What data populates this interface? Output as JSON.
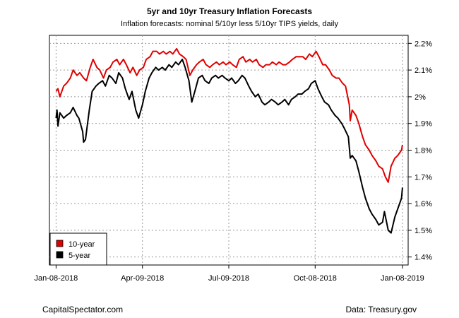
{
  "chart_data": {
    "type": "line",
    "title": "5yr and 10yr Treasury Inflation Forecasts",
    "subtitle": "Inflation forecasts: nominal 5/10yr less 5/10yr TIPS yields, daily",
    "xlabel": "",
    "ylabel": "",
    "ylim": [
      1.37,
      2.23
    ],
    "xlim": [
      "2018-01-01",
      "2019-01-14"
    ],
    "x_ticks": [
      "2018-01-08",
      "2018-04-09",
      "2018-07-09",
      "2018-10-08",
      "2019-01-08"
    ],
    "x_tick_labels": [
      "Jan-08-2018",
      "Apr-09-2018",
      "Jul-09-2018",
      "Oct-08-2018",
      "Jan-08-2019"
    ],
    "y_ticks": [
      1.4,
      1.5,
      1.6,
      1.7,
      1.8,
      1.9,
      2.0,
      2.1,
      2.2
    ],
    "y_tick_labels": [
      "1.4%",
      "1.5%",
      "1.6%",
      "1.7%",
      "1.8%",
      "1.9%",
      "2%",
      "2.1%",
      "2.2%"
    ],
    "grid": true,
    "legend_position": "bottom-left",
    "series": [
      {
        "name": "10-year",
        "color": "#e00000",
        "points": [
          [
            "2018-01-08",
            2.02
          ],
          [
            "2018-01-10",
            2.03
          ],
          [
            "2018-01-12",
            2.0
          ],
          [
            "2018-01-16",
            2.04
          ],
          [
            "2018-01-19",
            2.05
          ],
          [
            "2018-01-23",
            2.07
          ],
          [
            "2018-01-26",
            2.1
          ],
          [
            "2018-01-30",
            2.08
          ],
          [
            "2018-02-02",
            2.09
          ],
          [
            "2018-02-06",
            2.07
          ],
          [
            "2018-02-09",
            2.06
          ],
          [
            "2018-02-13",
            2.11
          ],
          [
            "2018-02-16",
            2.14
          ],
          [
            "2018-02-20",
            2.11
          ],
          [
            "2018-02-23",
            2.1
          ],
          [
            "2018-02-27",
            2.07
          ],
          [
            "2018-03-02",
            2.1
          ],
          [
            "2018-03-06",
            2.11
          ],
          [
            "2018-03-09",
            2.13
          ],
          [
            "2018-03-13",
            2.14
          ],
          [
            "2018-03-16",
            2.12
          ],
          [
            "2018-03-20",
            2.14
          ],
          [
            "2018-03-23",
            2.12
          ],
          [
            "2018-03-27",
            2.09
          ],
          [
            "2018-03-30",
            2.11
          ],
          [
            "2018-04-03",
            2.08
          ],
          [
            "2018-04-06",
            2.1
          ],
          [
            "2018-04-10",
            2.11
          ],
          [
            "2018-04-13",
            2.14
          ],
          [
            "2018-04-17",
            2.15
          ],
          [
            "2018-04-20",
            2.17
          ],
          [
            "2018-04-24",
            2.17
          ],
          [
            "2018-04-27",
            2.16
          ],
          [
            "2018-05-01",
            2.17
          ],
          [
            "2018-05-04",
            2.16
          ],
          [
            "2018-05-08",
            2.17
          ],
          [
            "2018-05-11",
            2.16
          ],
          [
            "2018-05-15",
            2.18
          ],
          [
            "2018-05-18",
            2.16
          ],
          [
            "2018-05-22",
            2.15
          ],
          [
            "2018-05-25",
            2.14
          ],
          [
            "2018-05-29",
            2.08
          ],
          [
            "2018-06-01",
            2.1
          ],
          [
            "2018-06-05",
            2.12
          ],
          [
            "2018-06-08",
            2.13
          ],
          [
            "2018-06-12",
            2.14
          ],
          [
            "2018-06-15",
            2.12
          ],
          [
            "2018-06-19",
            2.11
          ],
          [
            "2018-06-22",
            2.12
          ],
          [
            "2018-06-26",
            2.13
          ],
          [
            "2018-06-29",
            2.12
          ],
          [
            "2018-07-03",
            2.13
          ],
          [
            "2018-07-06",
            2.12
          ],
          [
            "2018-07-10",
            2.13
          ],
          [
            "2018-07-13",
            2.12
          ],
          [
            "2018-07-17",
            2.11
          ],
          [
            "2018-07-20",
            2.14
          ],
          [
            "2018-07-24",
            2.15
          ],
          [
            "2018-07-27",
            2.13
          ],
          [
            "2018-07-31",
            2.14
          ],
          [
            "2018-08-03",
            2.13
          ],
          [
            "2018-08-07",
            2.14
          ],
          [
            "2018-08-10",
            2.12
          ],
          [
            "2018-08-14",
            2.11
          ],
          [
            "2018-08-17",
            2.12
          ],
          [
            "2018-08-21",
            2.12
          ],
          [
            "2018-08-24",
            2.13
          ],
          [
            "2018-08-28",
            2.12
          ],
          [
            "2018-08-31",
            2.13
          ],
          [
            "2018-09-04",
            2.12
          ],
          [
            "2018-09-07",
            2.12
          ],
          [
            "2018-09-11",
            2.13
          ],
          [
            "2018-09-14",
            2.14
          ],
          [
            "2018-09-18",
            2.15
          ],
          [
            "2018-09-21",
            2.15
          ],
          [
            "2018-09-25",
            2.15
          ],
          [
            "2018-09-28",
            2.14
          ],
          [
            "2018-10-02",
            2.16
          ],
          [
            "2018-10-05",
            2.15
          ],
          [
            "2018-10-09",
            2.17
          ],
          [
            "2018-10-12",
            2.15
          ],
          [
            "2018-10-16",
            2.12
          ],
          [
            "2018-10-19",
            2.12
          ],
          [
            "2018-10-23",
            2.1
          ],
          [
            "2018-10-26",
            2.08
          ],
          [
            "2018-10-30",
            2.07
          ],
          [
            "2018-11-02",
            2.07
          ],
          [
            "2018-11-06",
            2.05
          ],
          [
            "2018-11-09",
            2.04
          ],
          [
            "2018-11-13",
            1.97
          ],
          [
            "2018-11-14",
            1.91
          ],
          [
            "2018-11-16",
            1.95
          ],
          [
            "2018-11-20",
            1.93
          ],
          [
            "2018-11-23",
            1.9
          ],
          [
            "2018-11-27",
            1.85
          ],
          [
            "2018-11-30",
            1.82
          ],
          [
            "2018-12-04",
            1.8
          ],
          [
            "2018-12-07",
            1.78
          ],
          [
            "2018-12-11",
            1.76
          ],
          [
            "2018-12-14",
            1.74
          ],
          [
            "2018-12-18",
            1.73
          ],
          [
            "2018-12-21",
            1.7
          ],
          [
            "2018-12-24",
            1.68
          ],
          [
            "2018-12-27",
            1.74
          ],
          [
            "2018-12-31",
            1.77
          ],
          [
            "2019-01-03",
            1.78
          ],
          [
            "2019-01-07",
            1.8
          ],
          [
            "2019-01-08",
            1.82
          ]
        ]
      },
      {
        "name": "5-year",
        "color": "#000000",
        "points": [
          [
            "2018-01-08",
            1.92
          ],
          [
            "2018-01-09",
            1.95
          ],
          [
            "2018-01-10",
            1.89
          ],
          [
            "2018-01-12",
            1.94
          ],
          [
            "2018-01-16",
            1.92
          ],
          [
            "2018-01-19",
            1.93
          ],
          [
            "2018-01-23",
            1.94
          ],
          [
            "2018-01-26",
            1.96
          ],
          [
            "2018-01-30",
            1.93
          ],
          [
            "2018-02-01",
            1.92
          ],
          [
            "2018-02-05",
            1.87
          ],
          [
            "2018-02-06",
            1.83
          ],
          [
            "2018-02-08",
            1.84
          ],
          [
            "2018-02-12",
            1.95
          ],
          [
            "2018-02-15",
            2.02
          ],
          [
            "2018-02-19",
            2.04
          ],
          [
            "2018-02-22",
            2.05
          ],
          [
            "2018-02-26",
            2.06
          ],
          [
            "2018-03-01",
            2.04
          ],
          [
            "2018-03-05",
            2.08
          ],
          [
            "2018-03-08",
            2.07
          ],
          [
            "2018-03-12",
            2.05
          ],
          [
            "2018-03-15",
            2.09
          ],
          [
            "2018-03-19",
            2.07
          ],
          [
            "2018-03-22",
            2.03
          ],
          [
            "2018-03-26",
            1.99
          ],
          [
            "2018-03-29",
            2.02
          ],
          [
            "2018-04-02",
            1.95
          ],
          [
            "2018-04-05",
            1.92
          ],
          [
            "2018-04-09",
            1.97
          ],
          [
            "2018-04-12",
            2.02
          ],
          [
            "2018-04-16",
            2.07
          ],
          [
            "2018-04-19",
            2.09
          ],
          [
            "2018-04-23",
            2.11
          ],
          [
            "2018-04-26",
            2.1
          ],
          [
            "2018-04-30",
            2.11
          ],
          [
            "2018-05-03",
            2.1
          ],
          [
            "2018-05-07",
            2.12
          ],
          [
            "2018-05-10",
            2.11
          ],
          [
            "2018-05-14",
            2.13
          ],
          [
            "2018-05-17",
            2.12
          ],
          [
            "2018-05-21",
            2.14
          ],
          [
            "2018-05-24",
            2.11
          ],
          [
            "2018-05-28",
            2.06
          ],
          [
            "2018-05-31",
            1.98
          ],
          [
            "2018-06-04",
            2.03
          ],
          [
            "2018-06-07",
            2.07
          ],
          [
            "2018-06-11",
            2.08
          ],
          [
            "2018-06-14",
            2.06
          ],
          [
            "2018-06-18",
            2.05
          ],
          [
            "2018-06-21",
            2.07
          ],
          [
            "2018-06-25",
            2.08
          ],
          [
            "2018-06-28",
            2.07
          ],
          [
            "2018-07-02",
            2.08
          ],
          [
            "2018-07-05",
            2.07
          ],
          [
            "2018-07-09",
            2.06
          ],
          [
            "2018-07-12",
            2.07
          ],
          [
            "2018-07-16",
            2.05
          ],
          [
            "2018-07-19",
            2.06
          ],
          [
            "2018-07-23",
            2.08
          ],
          [
            "2018-07-26",
            2.07
          ],
          [
            "2018-07-30",
            2.04
          ],
          [
            "2018-08-02",
            2.02
          ],
          [
            "2018-08-06",
            2.0
          ],
          [
            "2018-08-09",
            2.01
          ],
          [
            "2018-08-13",
            1.98
          ],
          [
            "2018-08-16",
            1.97
          ],
          [
            "2018-08-20",
            1.98
          ],
          [
            "2018-08-23",
            1.99
          ],
          [
            "2018-08-27",
            1.98
          ],
          [
            "2018-08-30",
            1.97
          ],
          [
            "2018-09-03",
            1.98
          ],
          [
            "2018-09-06",
            1.99
          ],
          [
            "2018-09-10",
            1.97
          ],
          [
            "2018-09-13",
            1.99
          ],
          [
            "2018-09-17",
            2.0
          ],
          [
            "2018-09-20",
            2.01
          ],
          [
            "2018-09-24",
            2.01
          ],
          [
            "2018-09-27",
            2.02
          ],
          [
            "2018-10-01",
            2.03
          ],
          [
            "2018-10-04",
            2.05
          ],
          [
            "2018-10-08",
            2.06
          ],
          [
            "2018-10-11",
            2.03
          ],
          [
            "2018-10-15",
            2.0
          ],
          [
            "2018-10-18",
            1.98
          ],
          [
            "2018-10-22",
            1.97
          ],
          [
            "2018-10-25",
            1.95
          ],
          [
            "2018-10-29",
            1.93
          ],
          [
            "2018-11-01",
            1.92
          ],
          [
            "2018-11-05",
            1.9
          ],
          [
            "2018-11-08",
            1.88
          ],
          [
            "2018-11-12",
            1.85
          ],
          [
            "2018-11-14",
            1.77
          ],
          [
            "2018-11-16",
            1.78
          ],
          [
            "2018-11-20",
            1.76
          ],
          [
            "2018-11-23",
            1.72
          ],
          [
            "2018-11-27",
            1.66
          ],
          [
            "2018-11-30",
            1.62
          ],
          [
            "2018-12-04",
            1.58
          ],
          [
            "2018-12-07",
            1.56
          ],
          [
            "2018-12-11",
            1.54
          ],
          [
            "2018-12-14",
            1.52
          ],
          [
            "2018-12-18",
            1.53
          ],
          [
            "2018-12-20",
            1.57
          ],
          [
            "2018-12-24",
            1.5
          ],
          [
            "2018-12-27",
            1.49
          ],
          [
            "2018-12-31",
            1.55
          ],
          [
            "2019-01-03",
            1.58
          ],
          [
            "2019-01-07",
            1.62
          ],
          [
            "2019-01-08",
            1.66
          ]
        ]
      }
    ]
  },
  "footer": {
    "left": "CapitalSpectator.com",
    "right": "Data: Treasury.gov"
  }
}
